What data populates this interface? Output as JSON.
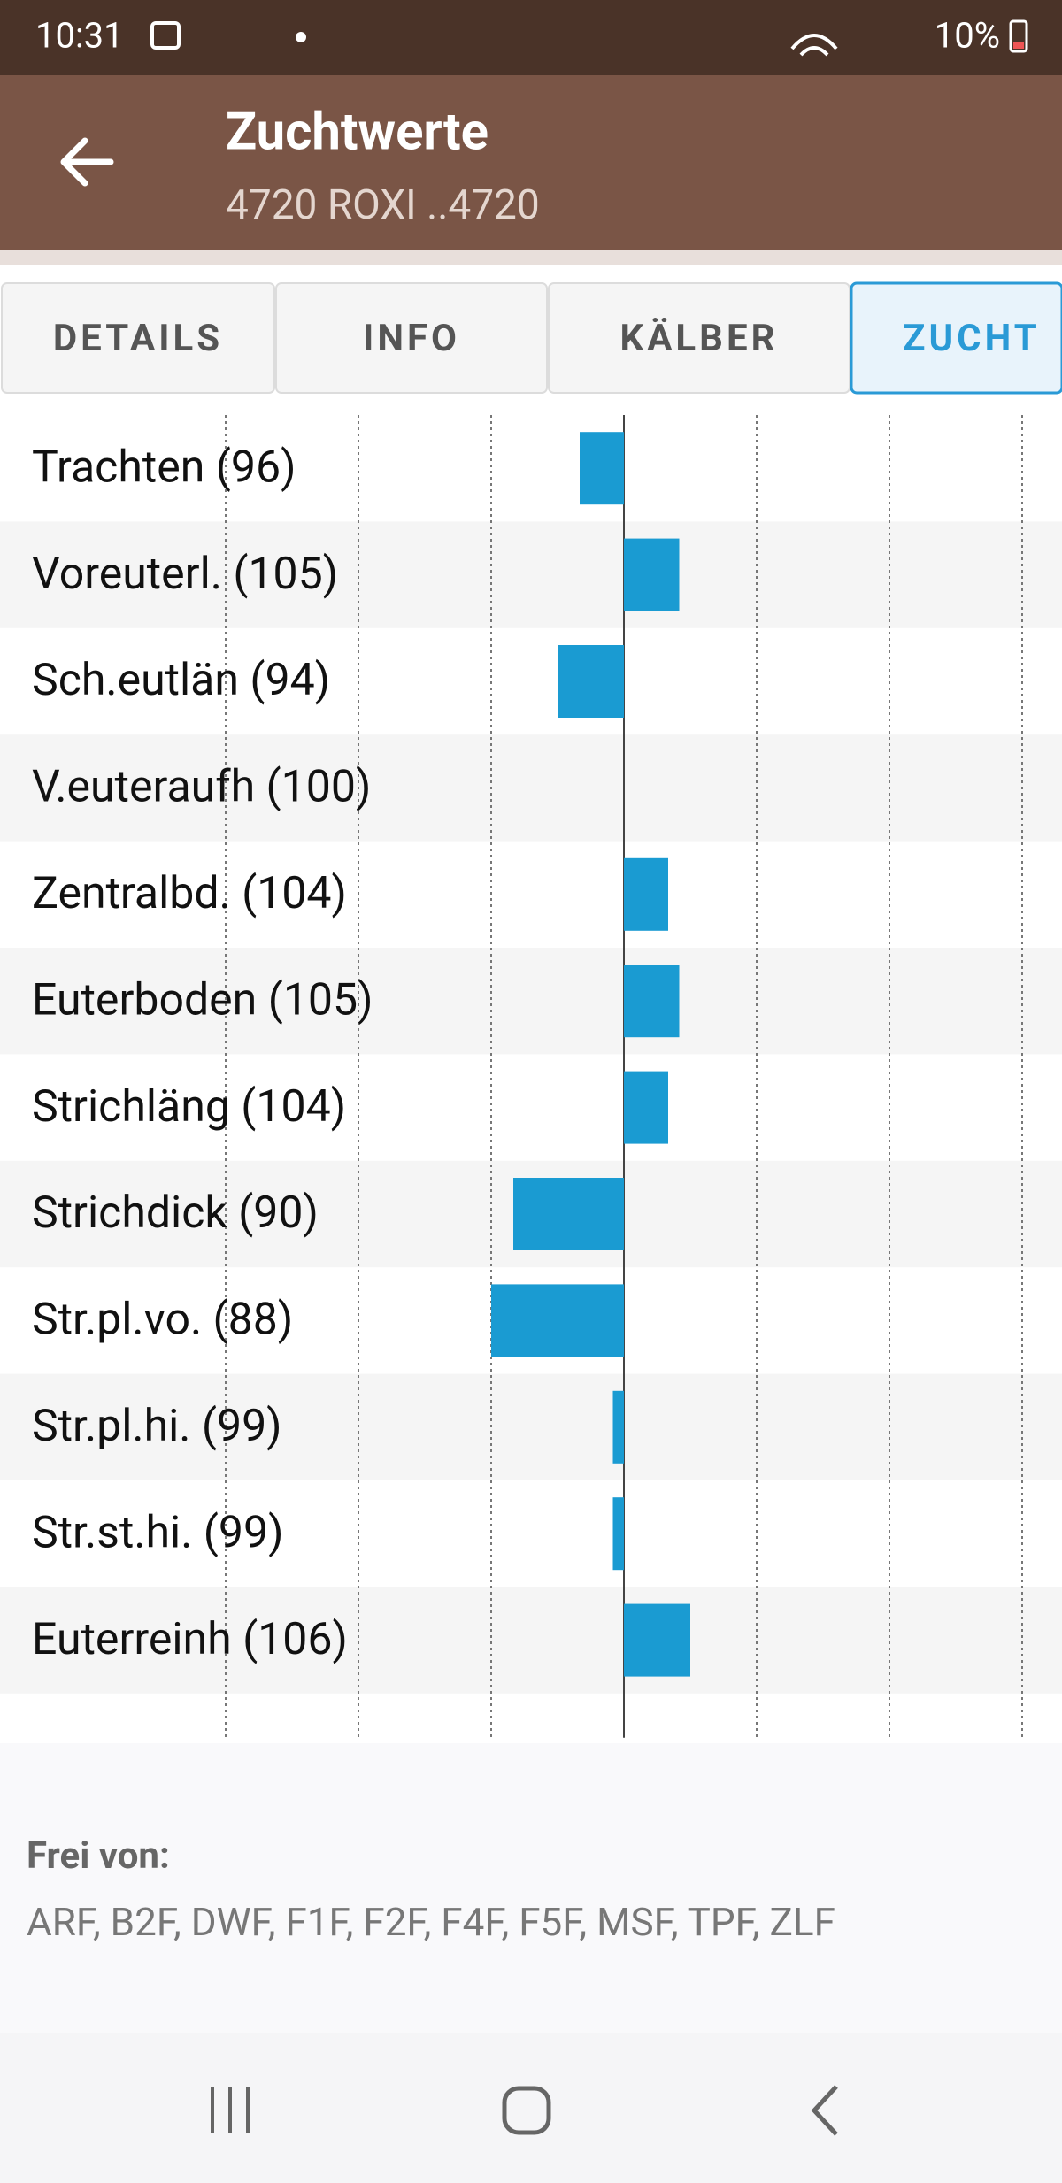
{
  "status_bar": {
    "time": "10:31",
    "battery": "10%"
  },
  "app_bar": {
    "title": "Zuchtwerte",
    "subtitle": "4720 ROXI ..4720"
  },
  "tabs": [
    "DETAILS",
    "INFO",
    "KÄLBER",
    "ZUCHT"
  ],
  "active_tab": 3,
  "chart_data": {
    "type": "bar",
    "orientation": "horizontal",
    "categories": [
      "Trachten (96)",
      "Voreuterl. (105)",
      "Sch.eutlän (94)",
      "V.euteraufh (100)",
      "Zentralbd. (104)",
      "Euterboden (105)",
      "Strichläng (104)",
      "Strichdick (90)",
      "Str.pl.vo. (88)",
      "Str.pl.hi. (99)",
      "Str.st.hi. (99)",
      "Euterreinh (106)"
    ],
    "values": [
      96,
      105,
      94,
      100,
      104,
      105,
      104,
      90,
      88,
      99,
      99,
      106
    ],
    "baseline": 100,
    "xlim": [
      64,
      136
    ],
    "xticks": [
      64,
      76,
      88,
      100,
      112,
      124,
      136
    ],
    "color": "#1a9bd2",
    "grid": true
  },
  "footer": {
    "heading": "Frei von:",
    "text": "ARF, B2F, DWF, F1F, F2F, F4F, F5F, MSF, TPF, ZLF"
  }
}
